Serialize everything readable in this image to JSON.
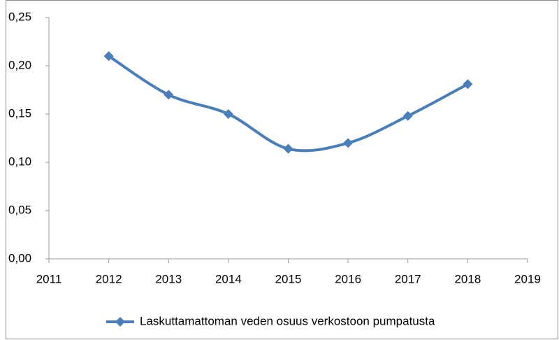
{
  "chart_data": {
    "type": "line",
    "x": [
      2012,
      2013,
      2014,
      2015,
      2016,
      2017,
      2018
    ],
    "series": [
      {
        "name": "Laskuttamattoman veden osuus verkostoon pumpatusta",
        "color": "#4a7ebb",
        "values": [
          0.21,
          0.17,
          0.15,
          0.114,
          0.12,
          0.148,
          0.181
        ]
      }
    ],
    "xlim": [
      2011,
      2019
    ],
    "xticks": [
      2011,
      2012,
      2013,
      2014,
      2015,
      2016,
      2017,
      2018,
      2019
    ],
    "ylim": [
      0,
      0.25
    ],
    "yticks": [
      {
        "value": 0,
        "label": "0,00"
      },
      {
        "value": 0.05,
        "label": "0,05"
      },
      {
        "value": 0.1,
        "label": "0,10"
      },
      {
        "value": 0.15,
        "label": "0,15"
      },
      {
        "value": 0.2,
        "label": "0,20"
      },
      {
        "value": 0.25,
        "label": "0,25"
      }
    ],
    "legend": "bottom"
  }
}
